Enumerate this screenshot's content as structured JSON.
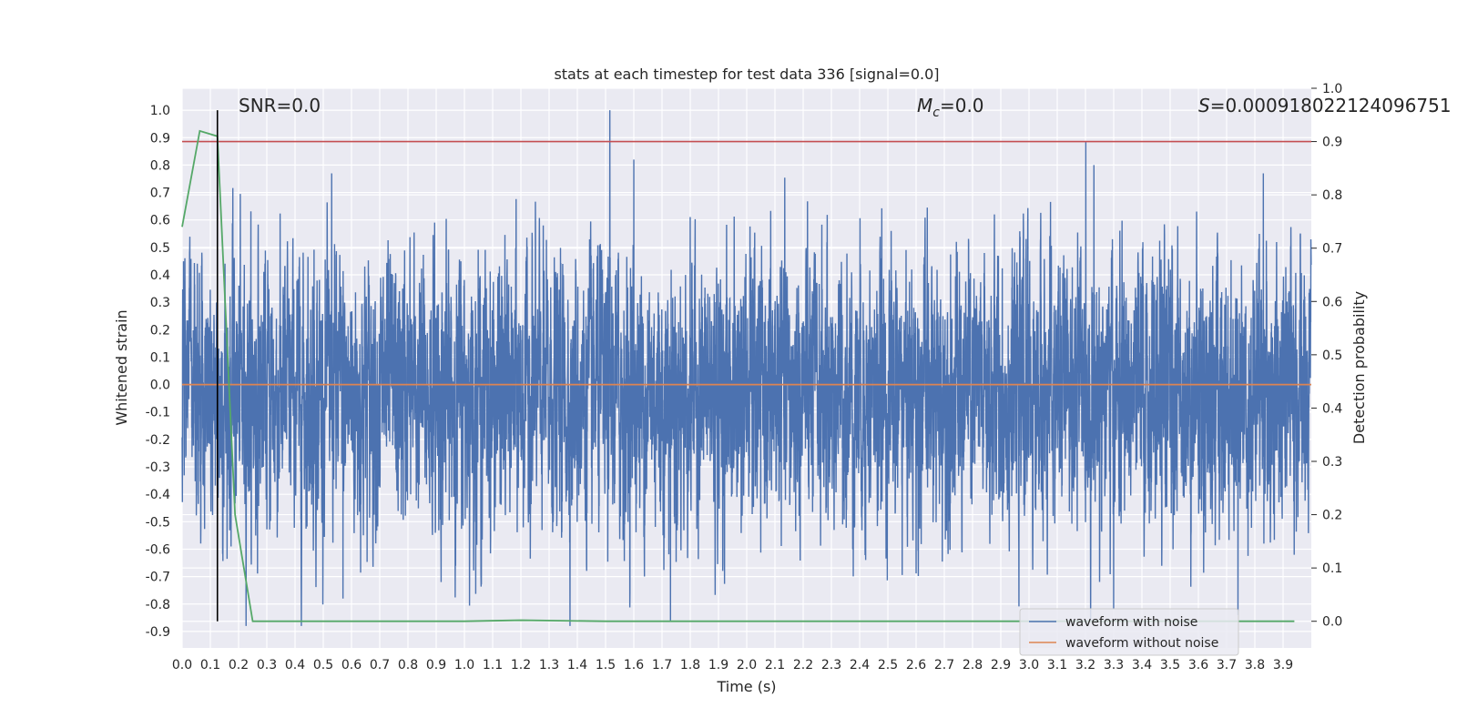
{
  "chart_data": {
    "type": "line",
    "title": "stats at each timestep for test data 336 [signal=0.0]",
    "xlabel": "Time (s)",
    "ylabel": "Whitened strain",
    "y2label": "Detection probability",
    "xlim": [
      0.0,
      4.0
    ],
    "ylim": [
      -0.96,
      1.08
    ],
    "y2lim": [
      -0.05,
      1.0
    ],
    "xticks": [
      "0.0",
      "0.1",
      "0.2",
      "0.3",
      "0.4",
      "0.5",
      "0.6",
      "0.7",
      "0.8",
      "0.9",
      "1.0",
      "1.1",
      "1.2",
      "1.3",
      "1.4",
      "1.5",
      "1.6",
      "1.7",
      "1.8",
      "1.9",
      "2.0",
      "2.1",
      "2.2",
      "2.3",
      "2.4",
      "2.5",
      "2.6",
      "2.7",
      "2.8",
      "2.9",
      "3.0",
      "3.1",
      "3.2",
      "3.3",
      "3.4",
      "3.5",
      "3.6",
      "3.7",
      "3.8",
      "3.9"
    ],
    "yticks": [
      "1.0",
      "0.9",
      "0.8",
      "0.7",
      "0.6",
      "0.5",
      "0.4",
      "0.3",
      "0.2",
      "0.1",
      "0.0",
      "-0.1",
      "-0.2",
      "-0.3",
      "-0.4",
      "-0.5",
      "-0.6",
      "-0.7",
      "-0.8",
      "-0.9"
    ],
    "y2ticks": [
      "1.0",
      "0.9",
      "0.8",
      "0.7",
      "0.6",
      "0.5",
      "0.4",
      "0.3",
      "0.2",
      "0.1",
      "0.0"
    ],
    "grid": true,
    "legend_placement": "lower-right",
    "annotations": {
      "snr": "SNR=0.0",
      "mc_symbol": "M",
      "mc_sub": "c",
      "mc_value": "=0.0",
      "s_symbol": "S",
      "s_value": "=0.000918022124096751"
    },
    "series": [
      {
        "name": "waveform with noise",
        "color": "#4c72b0",
        "kind": "noise",
        "axis": "left",
        "sample_rate": 2048,
        "std": 0.22,
        "mean": -0.03,
        "peaks": [
          [
            1.515,
            1.0
          ],
          [
            1.6,
            0.82
          ],
          [
            0.53,
            0.77
          ],
          [
            3.23,
            0.8
          ],
          [
            3.83,
            0.77
          ],
          [
            1.73,
            -0.86
          ],
          [
            3.3,
            -0.82
          ],
          [
            3.74,
            -0.84
          ],
          [
            0.57,
            -0.78
          ]
        ]
      },
      {
        "name": "waveform without noise",
        "color": "#dd8452",
        "kind": "line",
        "axis": "left",
        "x": [
          0.0,
          4.0
        ],
        "y": [
          0.0,
          0.0
        ]
      },
      {
        "color": "#55a868",
        "kind": "line",
        "axis": "right",
        "x": [
          0.0,
          0.0625,
          0.125,
          0.1875,
          0.25,
          0.5,
          1.0,
          1.2,
          1.5,
          2.0,
          2.5,
          3.0,
          3.5,
          3.94
        ],
        "y": [
          0.74,
          0.92,
          0.91,
          0.2,
          0.0,
          0.0,
          0.0,
          0.002,
          0.0,
          0.0,
          0.0,
          0.0,
          0.0,
          0.0
        ]
      }
    ],
    "threshold": {
      "value": 0.9,
      "axis": "right",
      "color": "#c44e52"
    },
    "marker_line": {
      "x": 0.125,
      "color": "#000000"
    }
  }
}
